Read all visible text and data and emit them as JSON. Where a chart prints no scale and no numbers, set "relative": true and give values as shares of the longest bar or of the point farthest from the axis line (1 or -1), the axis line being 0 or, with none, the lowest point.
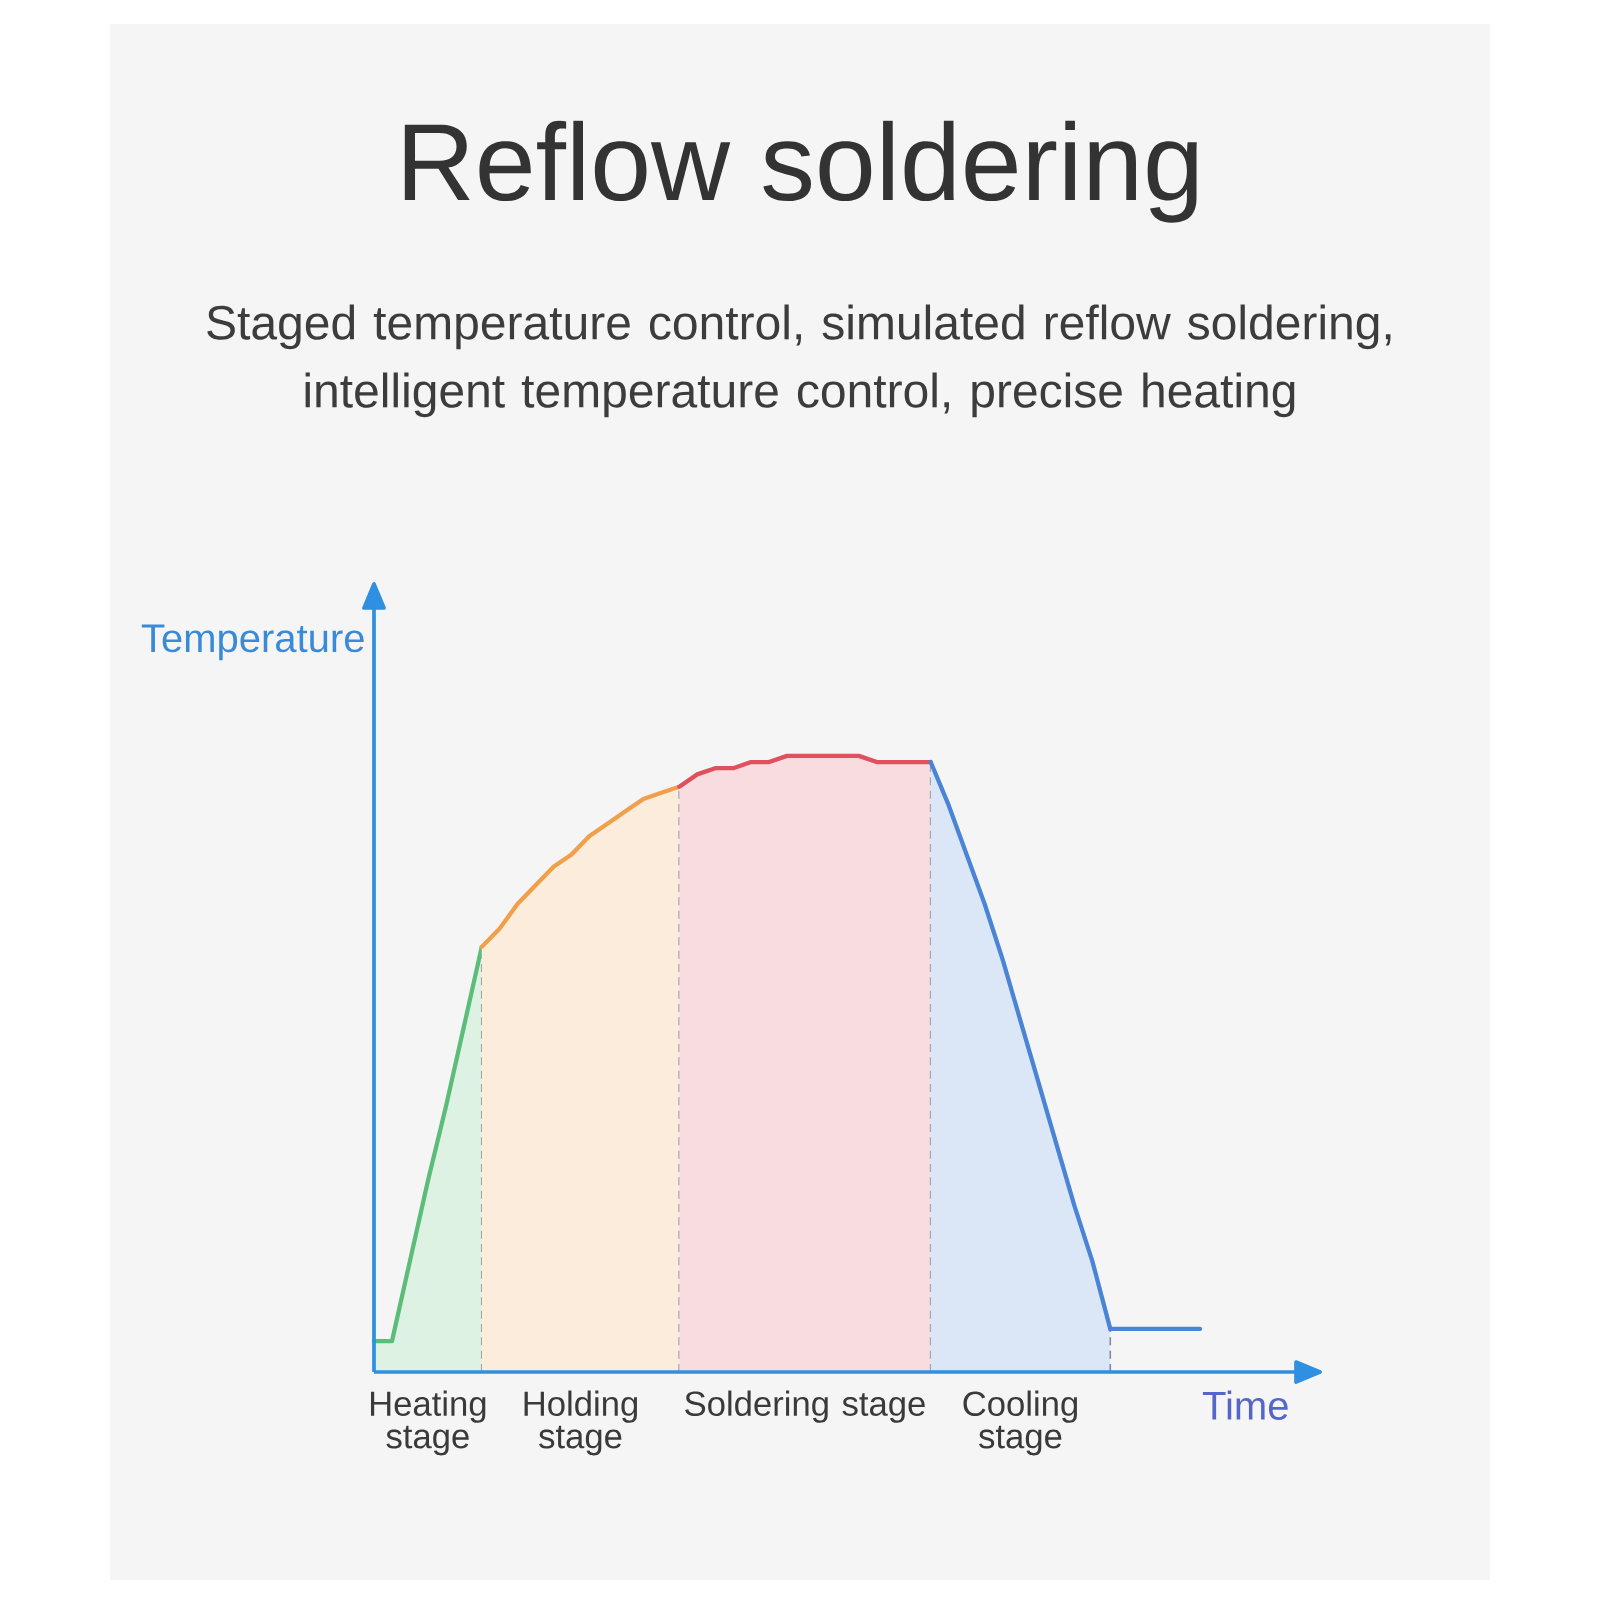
{
  "chart_data": {
    "type": "area",
    "title": "Reflow soldering",
    "subtitle": "Staged temperature control, simulated reflow soldering, intelligent temperature control, precise heating",
    "xlabel": "Time",
    "ylabel": "Temperature",
    "relative": true,
    "categories": [
      null,
      null,
      null,
      null,
      null,
      null,
      null,
      null,
      null,
      null,
      null,
      null,
      null,
      null,
      null,
      null,
      null,
      null,
      null,
      null,
      null,
      null,
      null,
      null,
      null,
      null,
      null,
      null,
      null,
      null,
      null,
      null,
      null,
      null,
      null,
      null,
      null,
      null,
      null,
      null,
      null,
      null,
      null,
      null,
      null,
      null,
      null
    ],
    "series": [
      {
        "name": "Heating stage",
        "color": "#5cbd7a",
        "values": [
          0.05,
          0.05,
          0.18,
          0.31,
          0.43,
          0.56,
          0.69,
          null,
          null,
          null,
          null,
          null,
          null,
          null,
          null,
          null,
          null,
          null,
          null,
          null,
          null,
          null,
          null,
          null,
          null,
          null,
          null,
          null,
          null,
          null,
          null,
          null,
          null,
          null,
          null,
          null,
          null,
          null,
          null,
          null,
          null,
          null,
          null,
          null,
          null,
          null,
          null
        ]
      },
      {
        "name": "Holding stage",
        "color": "#f0a04b",
        "values": [
          null,
          null,
          null,
          null,
          null,
          null,
          0.69,
          0.72,
          0.76,
          0.79,
          0.82,
          0.84,
          0.87,
          0.89,
          0.91,
          0.93,
          0.94,
          0.95,
          null,
          null,
          null,
          null,
          null,
          null,
          null,
          null,
          null,
          null,
          null,
          null,
          null,
          null,
          null,
          null,
          null,
          null,
          null,
          null,
          null,
          null,
          null,
          null,
          null,
          null,
          null,
          null,
          null
        ]
      },
      {
        "name": "Soldering stage",
        "color": "#e0505e",
        "values": [
          null,
          null,
          null,
          null,
          null,
          null,
          null,
          null,
          null,
          null,
          null,
          null,
          null,
          null,
          null,
          null,
          null,
          0.95,
          0.97,
          0.98,
          0.98,
          0.99,
          0.99,
          1.0,
          1.0,
          1.0,
          1.0,
          1.0,
          0.99,
          0.99,
          0.99,
          0.99,
          null,
          null,
          null,
          null,
          null,
          null,
          null,
          null,
          null,
          null,
          null,
          null,
          null,
          null,
          null
        ]
      },
      {
        "name": "Cooling stage",
        "color": "#4a84d4",
        "values": [
          null,
          null,
          null,
          null,
          null,
          null,
          null,
          null,
          null,
          null,
          null,
          null,
          null,
          null,
          null,
          null,
          null,
          null,
          null,
          null,
          null,
          null,
          null,
          null,
          null,
          null,
          null,
          null,
          null,
          null,
          null,
          0.99,
          0.92,
          0.84,
          0.76,
          0.67,
          0.57,
          0.47,
          0.37,
          0.27,
          0.18,
          0.07,
          null,
          null,
          null,
          null,
          null
        ]
      },
      {
        "type": "line",
        "color": "#4a84d4",
        "values": [
          null,
          null,
          null,
          null,
          null,
          null,
          null,
          null,
          null,
          null,
          null,
          null,
          null,
          null,
          null,
          null,
          null,
          null,
          null,
          null,
          null,
          null,
          null,
          null,
          null,
          null,
          null,
          null,
          null,
          null,
          null,
          null,
          null,
          null,
          null,
          null,
          null,
          null,
          null,
          null,
          null,
          0.07,
          0.07,
          0.07,
          0.07,
          0.07,
          0.07
        ]
      }
    ]
  }
}
